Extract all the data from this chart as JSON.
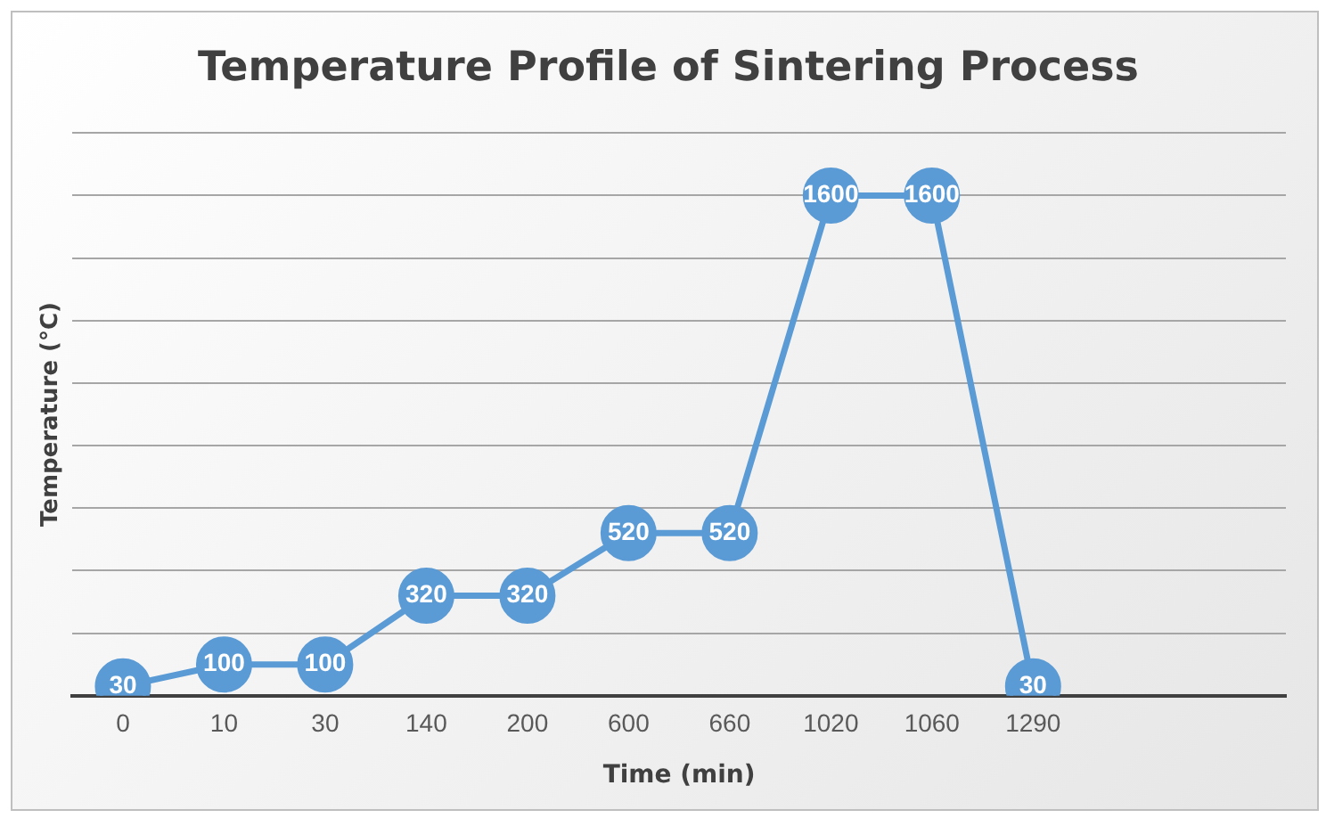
{
  "chart_data": {
    "type": "line",
    "title": "Temperature Profile of Sintering Process",
    "xlabel": "Time (min)",
    "ylabel": "Temperature (°C)",
    "categories": [
      "0",
      "10",
      "30",
      "140",
      "200",
      "600",
      "660",
      "1020",
      "1060",
      "1290",
      null,
      null
    ],
    "series": [
      {
        "color": "#5b9bd5",
        "values": [
          30,
          100,
          100,
          320,
          320,
          520,
          520,
          1600,
          1600,
          30,
          null,
          null
        ]
      }
    ],
    "ylim": [
      0,
      1800
    ],
    "yticks": [
      {
        "value": 0,
        "label": null
      },
      {
        "value": 200,
        "label": null
      },
      {
        "value": 400,
        "label": null
      },
      {
        "value": 600,
        "label": null
      },
      {
        "value": 800,
        "label": null
      },
      {
        "value": 1000,
        "label": null
      },
      {
        "value": 1200,
        "label": null
      },
      {
        "value": 1400,
        "label": null
      },
      {
        "value": 1600,
        "label": null
      },
      {
        "value": 1800,
        "label": null
      }
    ],
    "tick_labels": "x",
    "grid": "y",
    "legend": false,
    "marker": "circle",
    "line_style": "solid",
    "data_labels": true
  }
}
